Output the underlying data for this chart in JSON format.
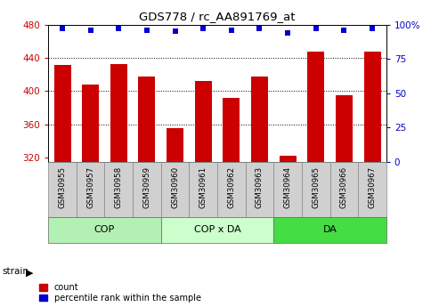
{
  "title": "GDS778 / rc_AA891769_at",
  "samples": [
    "GSM30955",
    "GSM30957",
    "GSM30958",
    "GSM30959",
    "GSM30960",
    "GSM30961",
    "GSM30962",
    "GSM30963",
    "GSM30964",
    "GSM30965",
    "GSM30966",
    "GSM30967"
  ],
  "counts": [
    432,
    408,
    433,
    418,
    356,
    412,
    392,
    418,
    323,
    448,
    395,
    448
  ],
  "percentiles": [
    97,
    96,
    97,
    96,
    95,
    97,
    96,
    97,
    94,
    97,
    96,
    97
  ],
  "groups": [
    {
      "label": "COP",
      "start": 0,
      "end": 4,
      "color": "#b3f0b3"
    },
    {
      "label": "COP x DA",
      "start": 4,
      "end": 8,
      "color": "#ccffcc"
    },
    {
      "label": "DA",
      "start": 8,
      "end": 12,
      "color": "#44dd44"
    }
  ],
  "ylim_left": [
    315,
    480
  ],
  "ylim_right": [
    0,
    100
  ],
  "yticks_left": [
    320,
    360,
    400,
    440,
    480
  ],
  "yticks_right": [
    0,
    25,
    50,
    75,
    100
  ],
  "bar_color": "#cc0000",
  "dot_color": "#0000cc",
  "ylabel_left_color": "#cc0000",
  "ylabel_right_color": "#0000cc",
  "sample_box_color": "#d0d0d0",
  "grid_yticks": [
    360,
    400,
    440
  ]
}
